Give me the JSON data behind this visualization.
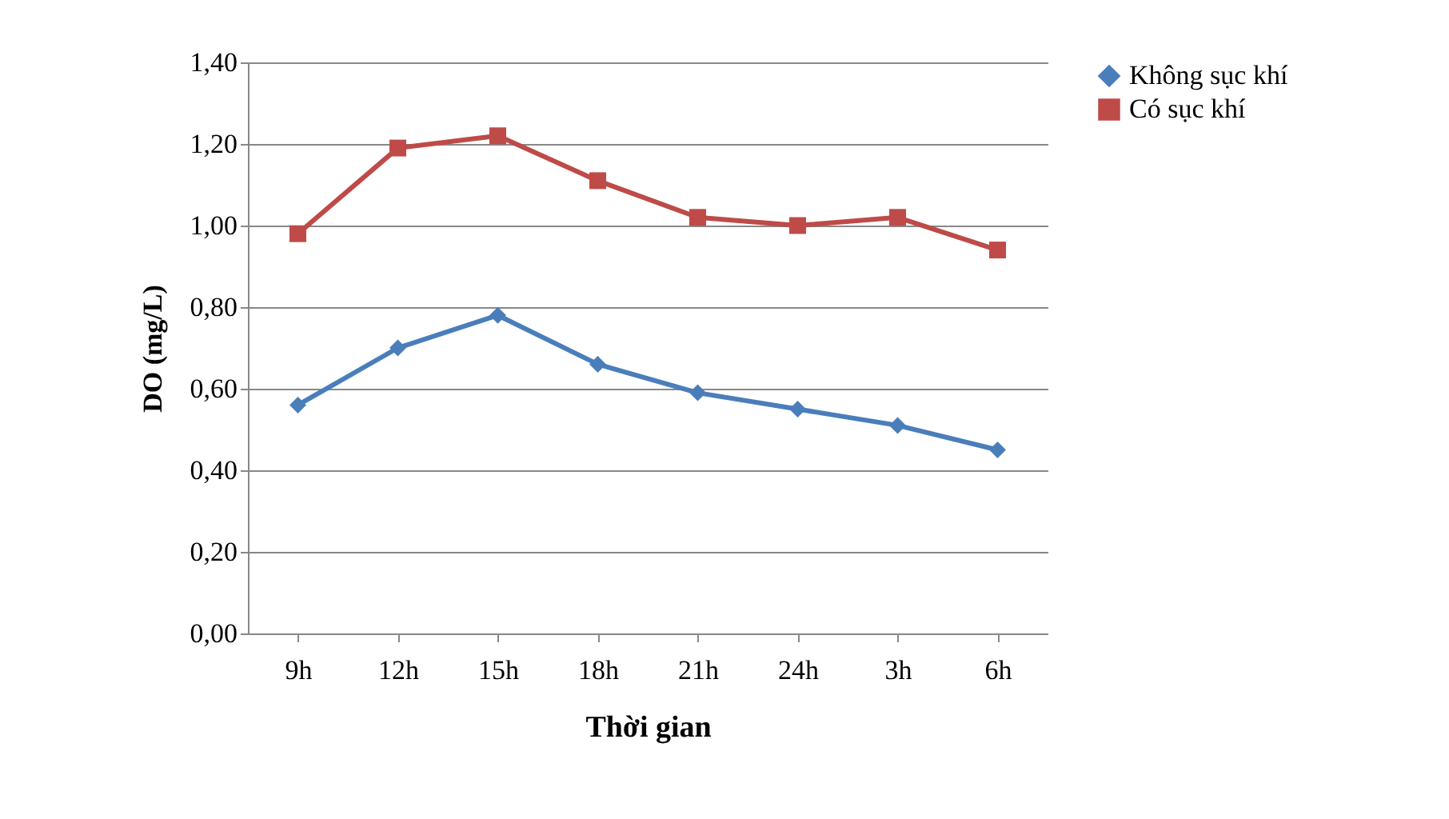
{
  "chart_data": {
    "type": "line",
    "xlabel": "Thời gian",
    "ylabel": "DO (mg/L)",
    "categories": [
      "9h",
      "12h",
      "15h",
      "18h",
      "21h",
      "24h",
      "3h",
      "6h"
    ],
    "series": [
      {
        "name": "Không sục khí",
        "color": "#4a7ebb",
        "marker": "diamond",
        "values": [
          0.56,
          0.7,
          0.78,
          0.66,
          0.59,
          0.55,
          0.51,
          0.45
        ]
      },
      {
        "name": "Có sục khí",
        "color": "#be4b48",
        "marker": "square",
        "values": [
          0.98,
          1.19,
          1.22,
          1.11,
          1.02,
          1.0,
          1.02,
          0.94
        ]
      }
    ],
    "ylim": [
      0,
      1.4
    ],
    "yticks": [
      {
        "value": 0,
        "label": "0,00"
      },
      {
        "value": 0.2,
        "label": "0,20"
      },
      {
        "value": 0.4,
        "label": "0,40"
      },
      {
        "value": 0.6,
        "label": "0,60"
      },
      {
        "value": 0.8,
        "label": "0,80"
      },
      {
        "value": 1.0,
        "label": "1,00"
      },
      {
        "value": 1.2,
        "label": "1,20"
      },
      {
        "value": 1.4,
        "label": "1,40"
      }
    ],
    "grid": "y",
    "legend": "right",
    "line_style": "solid"
  }
}
